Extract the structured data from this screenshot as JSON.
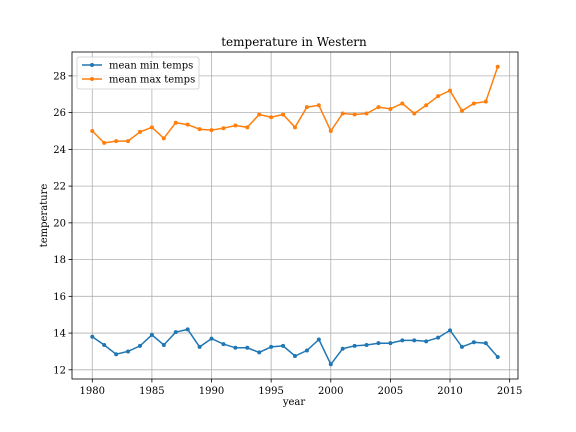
{
  "chart_data": {
    "type": "line",
    "title": "temperature in Western",
    "xlabel": "year",
    "ylabel": "temperature",
    "xlim": [
      1978.3,
      2015.7
    ],
    "ylim": [
      11.5,
      29.3
    ],
    "xticks": [
      1980,
      1985,
      1990,
      1995,
      2000,
      2005,
      2010,
      2015
    ],
    "yticks": [
      12,
      14,
      16,
      18,
      20,
      22,
      24,
      26,
      28
    ],
    "grid": true,
    "legend_position": "upper-left",
    "x": [
      1980,
      1981,
      1982,
      1983,
      1984,
      1985,
      1986,
      1987,
      1988,
      1989,
      1990,
      1991,
      1992,
      1993,
      1994,
      1995,
      1996,
      1997,
      1998,
      1999,
      2000,
      2001,
      2002,
      2003,
      2004,
      2005,
      2006,
      2007,
      2008,
      2009,
      2010,
      2011,
      2012,
      2013,
      2014
    ],
    "series": [
      {
        "name": "mean min temps",
        "color": "#1f77b4",
        "values": [
          13.8,
          13.35,
          12.85,
          13.0,
          13.3,
          13.9,
          13.35,
          14.05,
          14.2,
          13.25,
          13.7,
          13.4,
          13.2,
          13.2,
          12.95,
          13.25,
          13.3,
          12.75,
          13.05,
          13.65,
          12.3,
          13.15,
          13.3,
          13.35,
          13.45,
          13.45,
          13.6,
          13.6,
          13.55,
          13.75,
          14.15,
          13.25,
          13.5,
          13.45,
          12.7
        ]
      },
      {
        "name": "mean max temps",
        "color": "#ff7f0e",
        "values": [
          25.0,
          24.35,
          24.45,
          24.45,
          24.95,
          25.2,
          24.6,
          25.45,
          25.35,
          25.1,
          25.05,
          25.15,
          25.3,
          25.2,
          25.9,
          25.75,
          25.9,
          25.2,
          26.3,
          26.4,
          25.0,
          25.95,
          25.9,
          25.95,
          26.3,
          26.2,
          26.5,
          25.95,
          26.4,
          26.9,
          27.2,
          26.1,
          26.5,
          26.6,
          28.5
        ]
      }
    ]
  }
}
